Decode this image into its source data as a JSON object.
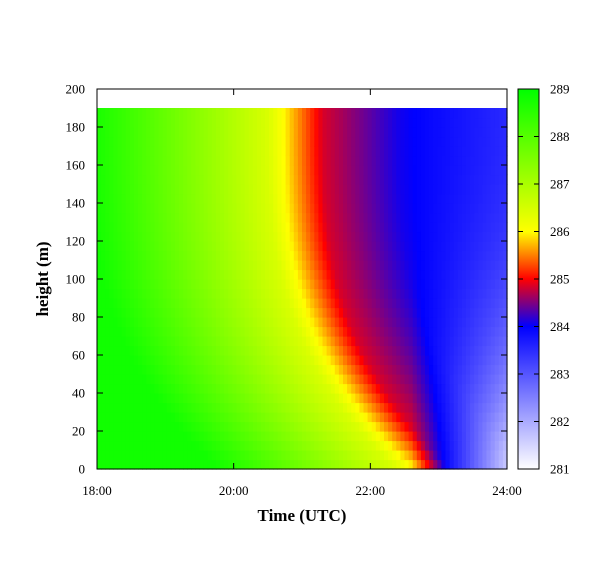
{
  "chart_data": {
    "type": "heatmap",
    "title": "",
    "xlabel": "Time (UTC)",
    "ylabel": "height (m)",
    "x_range": [
      "18:00",
      "24:00"
    ],
    "x_ticks": [
      "18:00",
      "20:00",
      "22:00",
      "24:00"
    ],
    "y_range": [
      0,
      200
    ],
    "y_ticks": [
      "0",
      "20",
      "40",
      "60",
      "80",
      "100",
      "120",
      "140",
      "160",
      "180",
      "200"
    ],
    "data_top_height": 190,
    "colorbar": {
      "range": [
        281,
        289
      ],
      "ticks": [
        "281",
        "282",
        "283",
        "284",
        "285",
        "286",
        "287",
        "288",
        "289"
      ],
      "stops": [
        {
          "value": 281,
          "color": "#ffffff"
        },
        {
          "value": 284,
          "color": "#0000ff"
        },
        {
          "value": 285,
          "color": "#ff0000"
        },
        {
          "value": 286,
          "color": "#ffff00"
        },
        {
          "value": 289,
          "color": "#00ff00"
        }
      ]
    },
    "field_description_points": [
      {
        "time": "18:00",
        "height": 0,
        "value": 288.7
      },
      {
        "time": "20:00",
        "height": 100,
        "value": 286.5
      },
      {
        "time": "21:00",
        "height": 100,
        "value": 285.3
      },
      {
        "time": "22:00",
        "height": 100,
        "value": 284.3
      },
      {
        "time": "23:00",
        "height": 0,
        "value": 283.0
      },
      {
        "time": "24:00",
        "height": 0,
        "value": 281.3
      },
      {
        "time": "24:00",
        "height": 180,
        "value": 283.8
      }
    ]
  }
}
